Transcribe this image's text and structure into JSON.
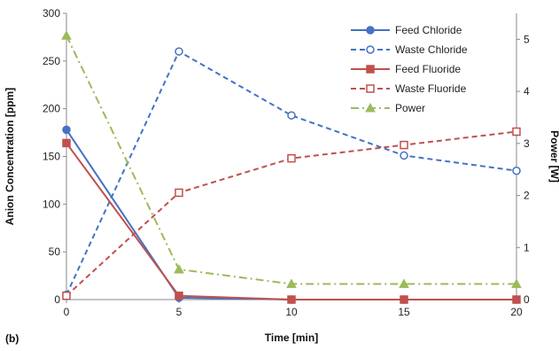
{
  "panel_label": "(b)",
  "chart_data": {
    "type": "line",
    "title": "",
    "xlabel": "Time [min]",
    "ylabel_left": "Anion Concentration [ppm]",
    "ylabel_right": "Power [W]",
    "x": [
      0,
      5,
      10,
      15,
      20
    ],
    "xlim": [
      0,
      20
    ],
    "xticks": [
      "0",
      "5",
      "10",
      "15",
      "20"
    ],
    "ylim_left": [
      0,
      300
    ],
    "yticks_left": [
      "0",
      "50",
      "100",
      "150",
      "200",
      "250",
      "300"
    ],
    "ylim_right": [
      0,
      5.5
    ],
    "yticks_right": [
      "0",
      "1",
      "2",
      "3",
      "4",
      "5"
    ],
    "grid": false,
    "legend_position": "top-right",
    "series": [
      {
        "name": "Feed Chloride",
        "axis": "left",
        "color": "#4472c4",
        "dash": "solid",
        "marker": "circle-filled",
        "values": [
          178,
          2,
          0,
          0,
          0
        ]
      },
      {
        "name": "Waste Chloride",
        "axis": "left",
        "color": "#4472c4",
        "dash": "dashed",
        "marker": "circle-open",
        "values": [
          5,
          260,
          193,
          151,
          135
        ]
      },
      {
        "name": "Feed Fluoride",
        "axis": "left",
        "color": "#c0504d",
        "dash": "solid",
        "marker": "square-filled",
        "values": [
          164,
          4,
          0,
          0,
          0
        ]
      },
      {
        "name": "Waste Fluoride",
        "axis": "left",
        "color": "#c0504d",
        "dash": "dashed",
        "marker": "square-open",
        "values": [
          4,
          112,
          148,
          162,
          176
        ]
      },
      {
        "name": "Power",
        "axis": "right",
        "color": "#9bbb59",
        "dash": "dashdot",
        "marker": "triangle-filled",
        "values": [
          5.07,
          0.58,
          0.3,
          0.3,
          0.3
        ]
      }
    ]
  }
}
